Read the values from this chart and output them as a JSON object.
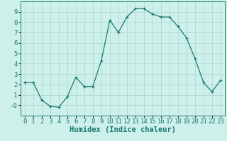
{
  "x": [
    0,
    1,
    2,
    3,
    4,
    5,
    6,
    7,
    8,
    9,
    10,
    11,
    12,
    13,
    14,
    15,
    16,
    17,
    18,
    19,
    20,
    21,
    22,
    23
  ],
  "y": [
    2.2,
    2.2,
    0.5,
    -0.1,
    -0.2,
    0.8,
    2.7,
    1.8,
    1.8,
    4.3,
    8.2,
    7.0,
    8.5,
    9.3,
    9.3,
    8.8,
    8.5,
    8.5,
    7.6,
    6.5,
    4.5,
    2.2,
    1.3,
    2.4
  ],
  "xlabel": "Humidex (Indice chaleur)",
  "xlim": [
    -0.5,
    23.5
  ],
  "ylim": [
    -1.0,
    10.0
  ],
  "line_color": "#1a7a6e",
  "marker": "+",
  "bg_color": "#cef0eb",
  "grid_color": "#b0d8d2",
  "tick_label_fontsize": 6.5,
  "xlabel_fontsize": 7.5,
  "yticks": [
    0,
    1,
    2,
    3,
    4,
    5,
    6,
    7,
    8,
    9
  ],
  "ytick_labels": [
    "-0",
    "1",
    "2",
    "3",
    "4",
    "5",
    "6",
    "7",
    "8",
    "9"
  ],
  "xticks": [
    0,
    1,
    2,
    3,
    4,
    5,
    6,
    7,
    8,
    9,
    10,
    11,
    12,
    13,
    14,
    15,
    16,
    17,
    18,
    19,
    20,
    21,
    22,
    23
  ]
}
